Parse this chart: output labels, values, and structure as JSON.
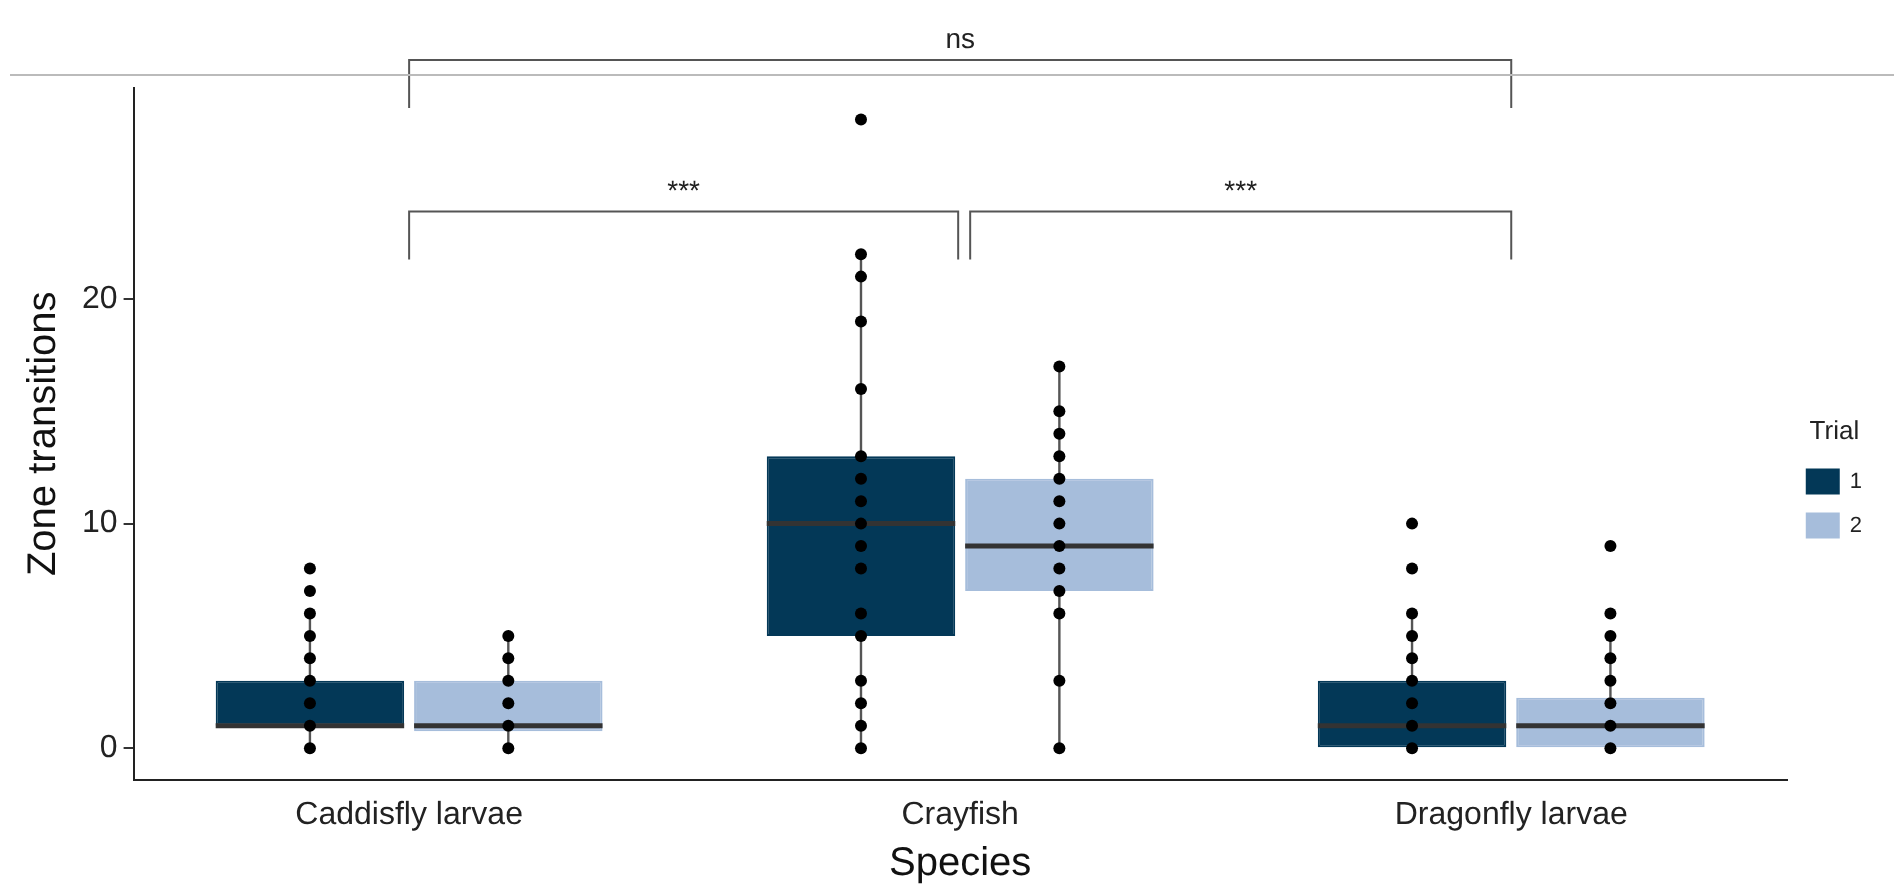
{
  "chart_data": {
    "type": "box",
    "xlabel": "Species",
    "ylabel": "Zone transitions",
    "legend_title": "Trial",
    "categories": [
      "Caddisfly larvae",
      "Crayfish",
      "Dragonfly larvae"
    ],
    "series": [
      {
        "name": "1",
        "color": "#033857",
        "boxes": [
          {
            "low": 0,
            "q1": 1,
            "median": 1,
            "q3": 3,
            "high": 6
          },
          {
            "low": 0,
            "q1": 5,
            "median": 10,
            "q3": 13,
            "high": 22
          },
          {
            "low": 0,
            "q1": 0,
            "median": 1,
            "q3": 3,
            "high": 6
          }
        ]
      },
      {
        "name": "2",
        "color": "#a6bddb",
        "boxes": [
          {
            "low": 0,
            "q1": 0.75,
            "median": 1,
            "q3": 3,
            "high": 5
          },
          {
            "low": 0,
            "q1": 7,
            "median": 9,
            "q3": 12,
            "high": 17
          },
          {
            "low": 0,
            "q1": 0,
            "median": 1,
            "q3": 2.25,
            "high": 5
          }
        ]
      },
      {
        "type": "scatter",
        "color": "#000000",
        "x": [
          "Caddisfly larvae",
          "Caddisfly larvae",
          "Caddisfly larvae",
          "Caddisfly larvae",
          "Caddisfly larvae",
          "Caddisfly larvae",
          "Caddisfly larvae",
          "Caddisfly larvae",
          "Caddisfly larvae",
          "Crayfish",
          "Crayfish",
          "Crayfish",
          "Crayfish",
          "Crayfish",
          "Crayfish",
          "Crayfish",
          "Crayfish",
          "Crayfish",
          "Crayfish",
          "Crayfish",
          "Crayfish",
          "Crayfish",
          "Crayfish",
          "Crayfish",
          "Crayfish",
          "Crayfish",
          "Dragonfly larvae",
          "Dragonfly larvae",
          "Dragonfly larvae",
          "Dragonfly larvae",
          "Dragonfly larvae",
          "Dragonfly larvae",
          "Dragonfly larvae",
          "Dragonfly larvae",
          "Dragonfly larvae"
        ],
        "values": [
          0,
          1,
          2,
          3,
          4,
          5,
          6,
          7,
          8,
          0,
          1,
          2,
          3,
          5,
          6,
          8,
          9,
          10,
          11,
          12,
          13,
          16,
          19,
          21,
          22,
          28,
          0,
          1,
          2,
          3,
          4,
          5,
          6,
          8,
          10
        ]
      },
      {
        "type": "scatter",
        "color": "#000000",
        "x": [
          "Caddisfly larvae",
          "Caddisfly larvae",
          "Caddisfly larvae",
          "Caddisfly larvae",
          "Caddisfly larvae",
          "Caddisfly larvae",
          "Crayfish",
          "Crayfish",
          "Crayfish",
          "Crayfish",
          "Crayfish",
          "Crayfish",
          "Crayfish",
          "Crayfish",
          "Crayfish",
          "Crayfish",
          "Crayfish",
          "Crayfish",
          "Crayfish",
          "Dragonfly larvae",
          "Dragonfly larvae",
          "Dragonfly larvae",
          "Dragonfly larvae",
          "Dragonfly larvae",
          "Dragonfly larvae",
          "Dragonfly larvae",
          "Dragonfly larvae"
        ],
        "values": [
          0,
          1,
          2,
          3,
          4,
          5,
          0,
          3,
          6,
          7,
          8,
          9,
          10,
          11,
          12,
          13,
          14,
          15,
          17,
          0,
          1,
          2,
          3,
          4,
          5,
          6,
          9
        ]
      }
    ],
    "ylim": [
      -1.4,
      29.4
    ],
    "yticks": [
      0,
      10,
      20
    ],
    "grid": false,
    "legend": "right",
    "annotations": [
      "ns",
      "***",
      "***"
    ]
  }
}
